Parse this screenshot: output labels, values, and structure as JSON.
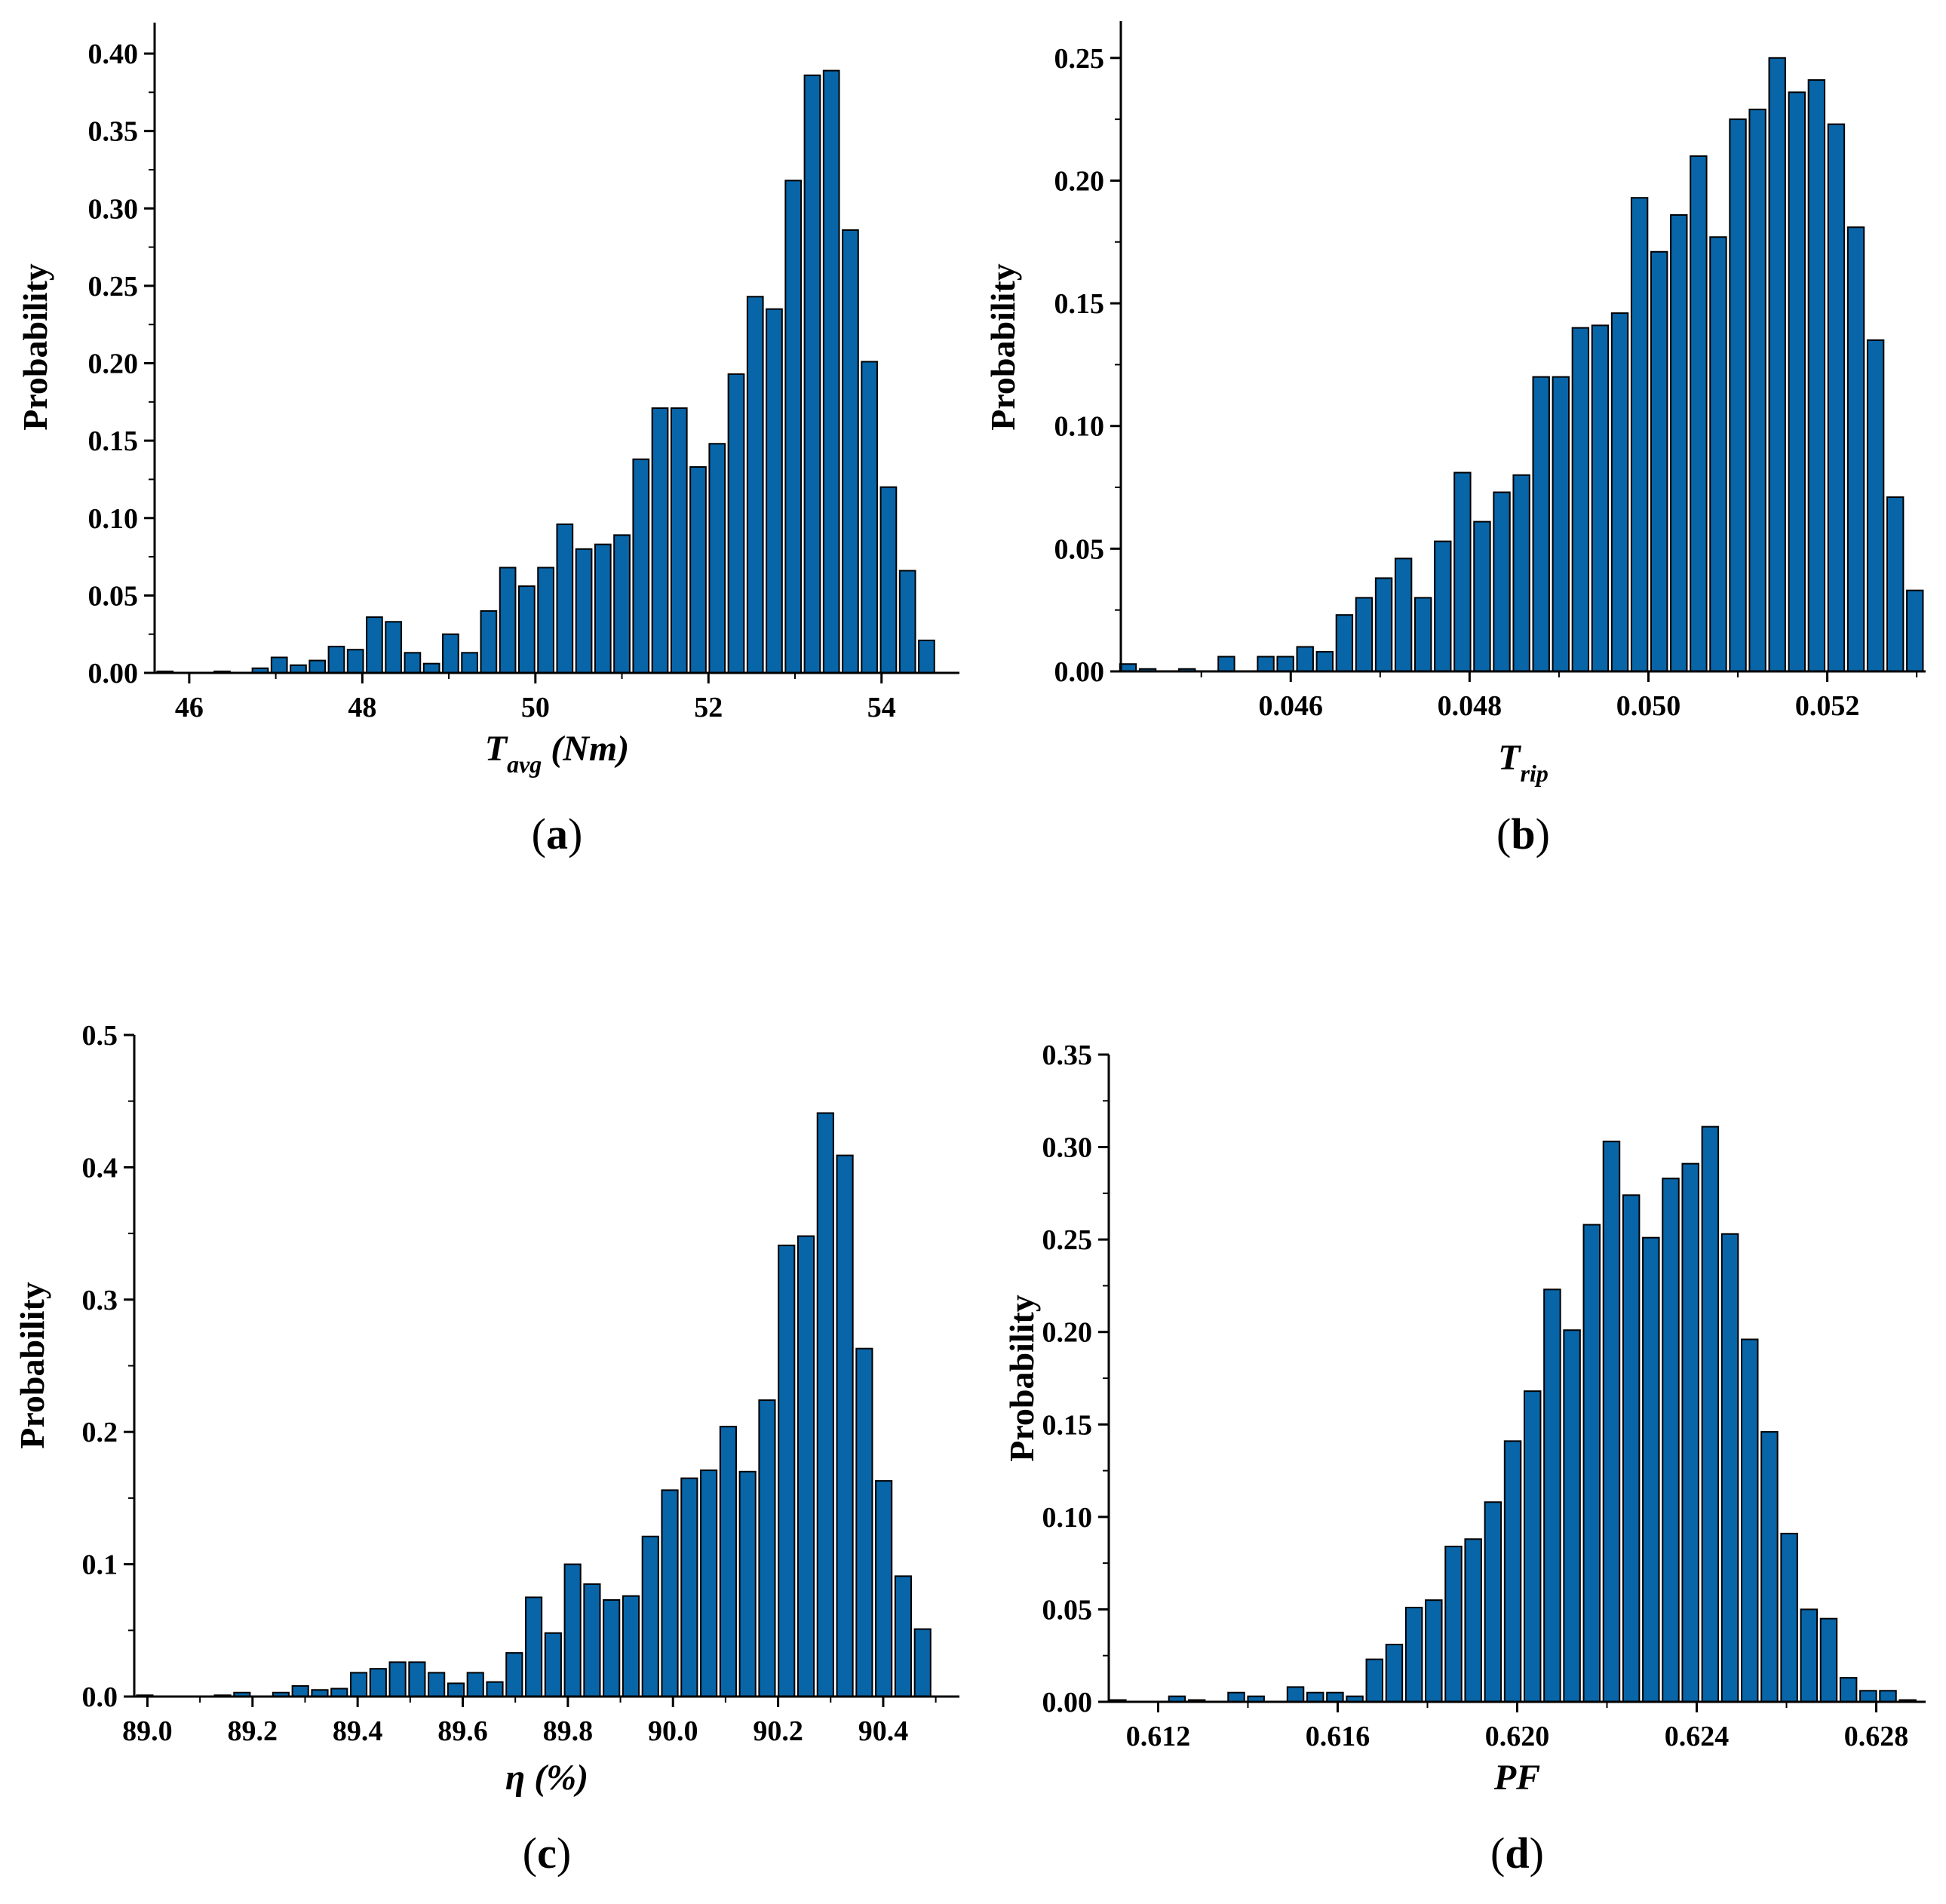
{
  "chart_data": [
    {
      "type": "bar",
      "panel_label": "a",
      "xlabel": "T",
      "xlabel_sub": "avg",
      "xlabel_suffix": " (Nm)",
      "ylabel": "Probability",
      "xlim": [
        45.6,
        54.9
      ],
      "ylim": [
        0,
        0.42
      ],
      "xticks": [
        46,
        48,
        50,
        52,
        54
      ],
      "xtick_labels": [
        "46",
        "48",
        "50",
        "52",
        "54"
      ],
      "yticks": [
        0,
        0.05,
        0.1,
        0.15,
        0.2,
        0.25,
        0.3,
        0.35,
        0.4
      ],
      "ytick_labels": [
        "0.00",
        "0.05",
        "0.10",
        "0.15",
        "0.20",
        "0.25",
        "0.30",
        "0.35",
        "0.40"
      ],
      "bar_color": "#0865a8",
      "x": [
        45.72,
        45.94,
        46.16,
        46.38,
        46.6,
        46.82,
        47.04,
        47.26,
        47.48,
        47.7,
        47.92,
        48.14,
        48.36,
        48.58,
        48.8,
        49.02,
        49.24,
        49.46,
        49.68,
        49.9,
        50.12,
        50.34,
        50.56,
        50.78,
        51.0,
        51.22,
        51.44,
        51.66,
        51.88,
        52.1,
        52.32,
        52.54,
        52.76,
        52.98,
        53.2,
        53.42,
        53.64,
        53.86,
        54.08,
        54.3,
        54.52,
        54.74
      ],
      "values": [
        0.001,
        0.0,
        0.0,
        0.001,
        0.0,
        0.003,
        0.01,
        0.005,
        0.008,
        0.017,
        0.015,
        0.036,
        0.033,
        0.013,
        0.006,
        0.025,
        0.013,
        0.04,
        0.068,
        0.056,
        0.068,
        0.096,
        0.08,
        0.083,
        0.089,
        0.138,
        0.171,
        0.171,
        0.133,
        0.148,
        0.193,
        0.243,
        0.235,
        0.318,
        0.386,
        0.389,
        0.286,
        0.201,
        0.12,
        0.066,
        0.021,
        0.0
      ]
    },
    {
      "type": "bar",
      "panel_label": "b",
      "xlabel": "T",
      "xlabel_sub": "rip",
      "xlabel_suffix": "",
      "ylabel": "Probability",
      "xlim": [
        0.0441,
        0.0531
      ],
      "ylim": [
        0,
        0.265
      ],
      "xticks": [
        0.046,
        0.048,
        0.05,
        0.052
      ],
      "xtick_labels": [
        "0.046",
        "0.048",
        "0.050",
        "0.052"
      ],
      "yticks": [
        0,
        0.05,
        0.1,
        0.15,
        0.2,
        0.25
      ],
      "ytick_labels": [
        "0.00",
        "0.05",
        "0.10",
        "0.15",
        "0.20",
        "0.25"
      ],
      "bar_color": "#0865a8",
      "x": [
        0.04418,
        0.0444,
        0.04462,
        0.04484,
        0.04506,
        0.04528,
        0.0455,
        0.04572,
        0.04594,
        0.04616,
        0.04638,
        0.0466,
        0.04682,
        0.04704,
        0.04726,
        0.04748,
        0.0477,
        0.04792,
        0.04814,
        0.04836,
        0.04858,
        0.0488,
        0.04902,
        0.04924,
        0.04946,
        0.04968,
        0.0499,
        0.05012,
        0.05034,
        0.05056,
        0.05078,
        0.051,
        0.05122,
        0.05144,
        0.05166,
        0.05188,
        0.0521,
        0.05232,
        0.05254,
        0.05276,
        0.05298
      ],
      "values": [
        0.003,
        0.001,
        0.0,
        0.001,
        0.0,
        0.006,
        0.0,
        0.006,
        0.006,
        0.01,
        0.008,
        0.023,
        0.03,
        0.038,
        0.046,
        0.03,
        0.053,
        0.081,
        0.061,
        0.073,
        0.08,
        0.12,
        0.12,
        0.14,
        0.141,
        0.146,
        0.193,
        0.171,
        0.186,
        0.21,
        0.177,
        0.225,
        0.229,
        0.25,
        0.236,
        0.241,
        0.223,
        0.181,
        0.135,
        0.071,
        0.033
      ]
    },
    {
      "type": "bar",
      "panel_label": "c",
      "xlabel": "η",
      "xlabel_sub": "",
      "xlabel_suffix": " (%)",
      "ylabel": "Probability",
      "xlim": [
        88.975,
        90.545
      ],
      "ylim": [
        0,
        0.5
      ],
      "xticks": [
        89.0,
        89.2,
        89.4,
        89.6,
        89.8,
        90.0,
        90.2,
        90.4
      ],
      "xtick_labels": [
        "89.0",
        "89.2",
        "89.4",
        "89.6",
        "89.8",
        "90.0",
        "90.2",
        "90.4"
      ],
      "yticks": [
        0,
        0.1,
        0.2,
        0.3,
        0.4,
        0.5
      ],
      "ytick_labels": [
        "0.0",
        "0.1",
        "0.2",
        "0.3",
        "0.4",
        "0.5"
      ],
      "bar_color": "#0865a8",
      "x": [
        88.995,
        89.032,
        89.069,
        89.106,
        89.143,
        89.18,
        89.217,
        89.254,
        89.291,
        89.328,
        89.365,
        89.402,
        89.439,
        89.476,
        89.513,
        89.55,
        89.587,
        89.624,
        89.661,
        89.698,
        89.735,
        89.772,
        89.809,
        89.846,
        89.883,
        89.92,
        89.957,
        89.994,
        90.031,
        90.068,
        90.105,
        90.142,
        90.179,
        90.216,
        90.253,
        90.29,
        90.327,
        90.364,
        90.401,
        90.438,
        90.475,
        90.512
      ],
      "values": [
        0.001,
        0.0,
        0.0,
        0.0,
        0.001,
        0.003,
        0.0,
        0.003,
        0.008,
        0.005,
        0.006,
        0.018,
        0.021,
        0.026,
        0.026,
        0.018,
        0.01,
        0.018,
        0.011,
        0.033,
        0.075,
        0.048,
        0.1,
        0.085,
        0.073,
        0.076,
        0.121,
        0.156,
        0.165,
        0.171,
        0.204,
        0.17,
        0.224,
        0.341,
        0.348,
        0.441,
        0.409,
        0.263,
        0.163,
        0.091,
        0.051,
        0.0
      ]
    },
    {
      "type": "bar",
      "panel_label": "d",
      "xlabel": "PF",
      "xlabel_sub": "",
      "xlabel_suffix": "",
      "ylabel": "Probability",
      "xlim": [
        0.6109,
        0.6291
      ],
      "ylim": [
        0,
        0.35
      ],
      "xticks": [
        0.612,
        0.616,
        0.62,
        0.624,
        0.628
      ],
      "xtick_labels": [
        "0.612",
        "0.616",
        "0.620",
        "0.624",
        "0.628"
      ],
      "yticks": [
        0,
        0.05,
        0.1,
        0.15,
        0.2,
        0.25,
        0.3,
        0.35
      ],
      "ytick_labels": [
        "0.00",
        "0.05",
        "0.10",
        "0.15",
        "0.20",
        "0.25",
        "0.30",
        "0.35"
      ],
      "bar_color": "#0865a8",
      "x": [
        0.6111,
        0.61154,
        0.61198,
        0.61242,
        0.61286,
        0.6133,
        0.61374,
        0.61418,
        0.61462,
        0.61506,
        0.6155,
        0.61594,
        0.61638,
        0.61682,
        0.61726,
        0.6177,
        0.61814,
        0.61858,
        0.61902,
        0.61946,
        0.6199,
        0.62034,
        0.62078,
        0.62122,
        0.62166,
        0.6221,
        0.62254,
        0.62298,
        0.62342,
        0.62386,
        0.6243,
        0.62474,
        0.62518,
        0.62562,
        0.62606,
        0.6265,
        0.62694,
        0.62738,
        0.62782,
        0.62826,
        0.6287
      ],
      "values": [
        0.001,
        0.0,
        0.0,
        0.003,
        0.001,
        0.0,
        0.005,
        0.003,
        0.0,
        0.008,
        0.005,
        0.005,
        0.003,
        0.023,
        0.031,
        0.051,
        0.055,
        0.084,
        0.088,
        0.108,
        0.141,
        0.168,
        0.223,
        0.201,
        0.258,
        0.303,
        0.274,
        0.251,
        0.283,
        0.291,
        0.311,
        0.253,
        0.196,
        0.146,
        0.091,
        0.05,
        0.045,
        0.013,
        0.006,
        0.006,
        0.001
      ]
    }
  ]
}
